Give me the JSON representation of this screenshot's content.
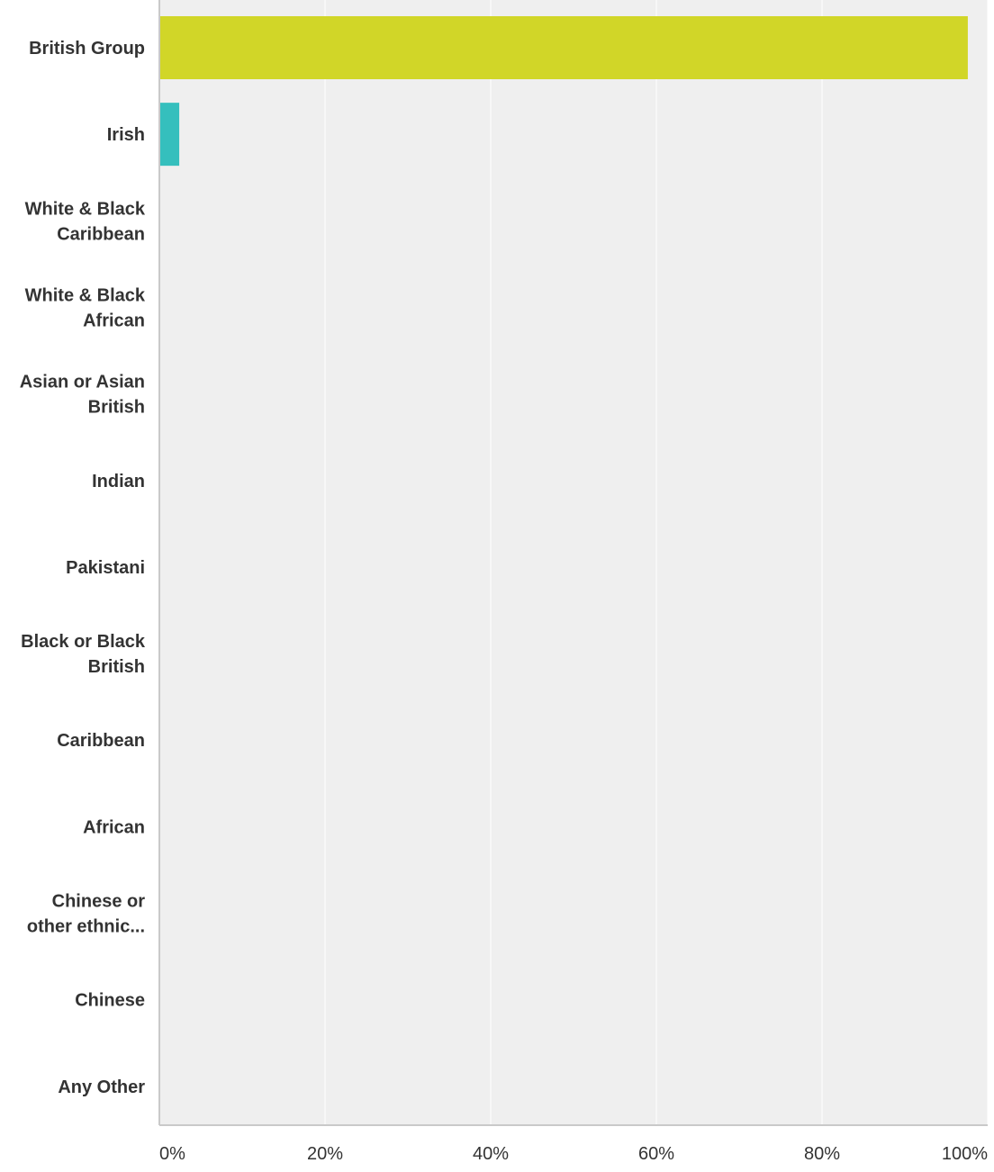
{
  "chart_data": {
    "type": "bar",
    "orientation": "horizontal",
    "categories": [
      [
        "British Group"
      ],
      [
        "Irish"
      ],
      [
        "White & Black",
        "Caribbean"
      ],
      [
        "White & Black",
        "African"
      ],
      [
        "Asian or Asian",
        "British"
      ],
      [
        "Indian"
      ],
      [
        "Pakistani"
      ],
      [
        "Black or Black",
        "British"
      ],
      [
        "Caribbean"
      ],
      [
        "African"
      ],
      [
        "Chinese or",
        "other ethnic..."
      ],
      [
        "Chinese"
      ],
      [
        "Any Other"
      ]
    ],
    "values": [
      97.6,
      2.4,
      0,
      0,
      0,
      0,
      0,
      0,
      0,
      0,
      0,
      0,
      0
    ],
    "bar_colors": [
      "#d1d628",
      "#35bfbd",
      "#d1d628",
      "#d1d628",
      "#d1d628",
      "#d1d628",
      "#d1d628",
      "#d1d628",
      "#d1d628",
      "#d1d628",
      "#d1d628",
      "#d1d628",
      "#d1d628"
    ],
    "xlim": [
      0,
      100
    ],
    "xticks": [
      "0%",
      "20%",
      "40%",
      "60%",
      "80%",
      "100%"
    ],
    "grid": true,
    "title": "",
    "xlabel": "",
    "ylabel": "",
    "colors": {
      "plot_background": "#efefef",
      "gridline": "#ffffff",
      "axis_line": "#c9c9c9"
    }
  }
}
